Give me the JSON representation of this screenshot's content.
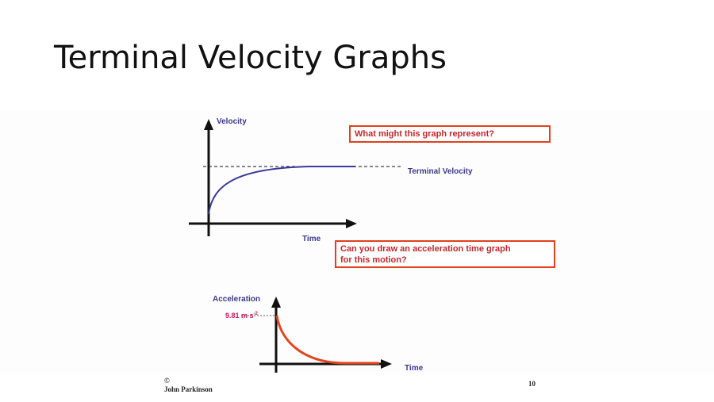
{
  "slide": {
    "title": "Terminal Velocity Graphs"
  },
  "velocity_graph": {
    "y_label": "Velocity",
    "x_label": "Time",
    "asymptote_label": "Terminal Velocity",
    "colors": {
      "curve": "#3a3a9a",
      "axes": "#111111"
    }
  },
  "acceleration_graph": {
    "y_label": "Acceleration",
    "x_label": "Time",
    "start_value_label": "9.81 m s",
    "start_value_exponent": "-2",
    "colors": {
      "curve": "#e2451c",
      "start_value": "#c2185b"
    }
  },
  "questions": {
    "q1": "What might this graph represent?",
    "q2_line1": "Can you draw an acceleration time graph",
    "q2_line2": "for this motion?"
  },
  "footer": {
    "copyright_symbol": "©",
    "author": "John Parkinson",
    "page_number": "10"
  }
}
